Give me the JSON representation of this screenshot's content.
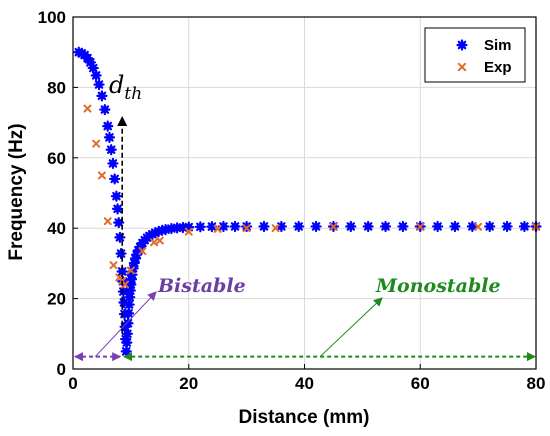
{
  "chart_data": {
    "type": "scatter",
    "xlabel": "Distance (mm)",
    "ylabel": "Frequency (Hz)",
    "xlim": [
      0,
      80
    ],
    "ylim": [
      0,
      100
    ],
    "xticks": [
      "0",
      "20",
      "40",
      "60",
      "80"
    ],
    "yticks": [
      "0",
      "20",
      "40",
      "60",
      "80",
      "100"
    ],
    "grid": true,
    "legend_position": "top-right",
    "series": [
      {
        "name": "Sim",
        "marker": "asterisk",
        "color": "#0000ff",
        "x": [
          1.0,
          1.5,
          2.0,
          2.5,
          3.0,
          3.5,
          4.0,
          4.5,
          5.0,
          5.5,
          6.0,
          6.3,
          6.6,
          6.9,
          7.2,
          7.5,
          7.7,
          7.9,
          8.1,
          8.3,
          8.5,
          8.6,
          8.7,
          8.8,
          8.9,
          9.0,
          9.1,
          9.2,
          9.3,
          9.4,
          9.5,
          9.6,
          9.7,
          9.8,
          9.9,
          10.0,
          10.1,
          10.2,
          10.4,
          10.6,
          10.8,
          11.0,
          11.3,
          11.6,
          12.0,
          12.4,
          12.8,
          13.2,
          13.7,
          14.2,
          14.8,
          15.4,
          16.0,
          17.0,
          18.0,
          19.0,
          20.0,
          22.0,
          24.0,
          26.0,
          28.0,
          30.0,
          33.0,
          36.0,
          39.0,
          42.0,
          45.0,
          48.0,
          51.0,
          54.0,
          57.0,
          60.0,
          63.0,
          66.0,
          69.0,
          72.0,
          75.0,
          78.0,
          80.0
        ],
        "y": [
          90.0,
          89.7,
          89.2,
          88.3,
          87.1,
          85.5,
          83.4,
          80.8,
          77.6,
          73.7,
          69.0,
          65.8,
          62.3,
          58.4,
          54.0,
          49.1,
          45.5,
          41.6,
          37.4,
          32.8,
          27.7,
          24.9,
          22.0,
          18.9,
          15.6,
          12.0,
          8.5,
          5.0,
          7.5,
          10.0,
          13.0,
          15.8,
          18.3,
          20.4,
          22.3,
          24.0,
          25.5,
          26.8,
          28.6,
          30.1,
          31.4,
          32.5,
          33.7,
          34.7,
          35.8,
          36.6,
          37.3,
          37.8,
          38.3,
          38.7,
          39.1,
          39.4,
          39.6,
          39.9,
          40.1,
          40.2,
          40.3,
          40.4,
          40.45,
          40.5,
          40.5,
          40.5,
          40.5,
          40.5,
          40.5,
          40.5,
          40.5,
          40.5,
          40.5,
          40.5,
          40.5,
          40.5,
          40.5,
          40.5,
          40.5,
          40.5,
          40.5,
          40.5,
          40.5
        ]
      },
      {
        "name": "Exp",
        "marker": "x",
        "color": "#e06c2a",
        "x": [
          2.5,
          4.0,
          5.0,
          6.0,
          7.0,
          8.0,
          8.5,
          9.0,
          10.0,
          12.0,
          14.0,
          15.0,
          20.0,
          25.0,
          30.0,
          35.0,
          45.0,
          60.0,
          70.0,
          80.0
        ],
        "y": [
          74,
          64,
          55,
          42,
          29.5,
          26,
          25,
          24,
          28,
          33.5,
          36,
          36.5,
          39,
          39.8,
          40,
          40,
          40.4,
          40.4,
          40.4,
          40.4
        ]
      }
    ],
    "annotations": [
      {
        "text": "Bistable",
        "color": "#6b3fa0"
      },
      {
        "text": "Monostable",
        "color": "#1e8a1e"
      },
      {
        "text": "d",
        "subscript": "th",
        "color": "#000000"
      }
    ],
    "threshold_line": {
      "x": 8.5,
      "y_top": 73
    },
    "bistable_range": [
      0,
      8.5
    ],
    "monostable_range": [
      8.5,
      80
    ],
    "range_arrow_y": 3.5
  }
}
